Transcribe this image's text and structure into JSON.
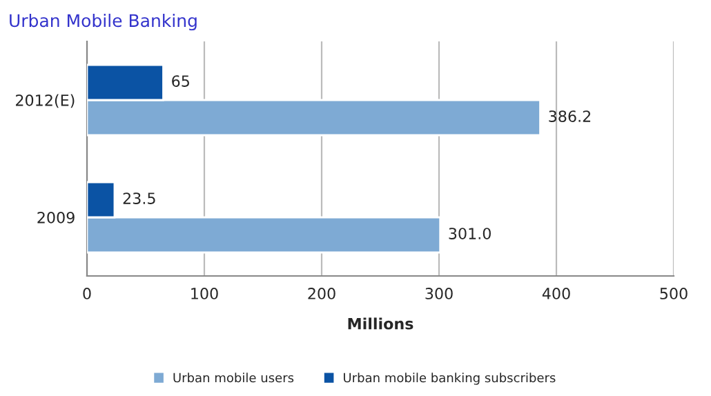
{
  "chart_data": {
    "type": "bar",
    "orientation": "horizontal",
    "title": "Urban Mobile Banking",
    "xlabel": "Millions",
    "categories": [
      "2012(E)",
      "2009"
    ],
    "series": [
      {
        "name": "Urban mobile users",
        "color": "#7eaad4",
        "values": [
          386.2,
          301.0
        ],
        "value_labels": [
          "386.2",
          "301.0"
        ]
      },
      {
        "name": "Urban mobile banking subscribers",
        "color": "#0b53a4",
        "values": [
          65,
          23.5
        ],
        "value_labels": [
          "65",
          "23.5"
        ]
      }
    ],
    "xlim": [
      0,
      500
    ],
    "xticks": [
      0,
      100,
      200,
      300,
      400,
      500
    ],
    "grid": "x",
    "legend": "bottom"
  }
}
